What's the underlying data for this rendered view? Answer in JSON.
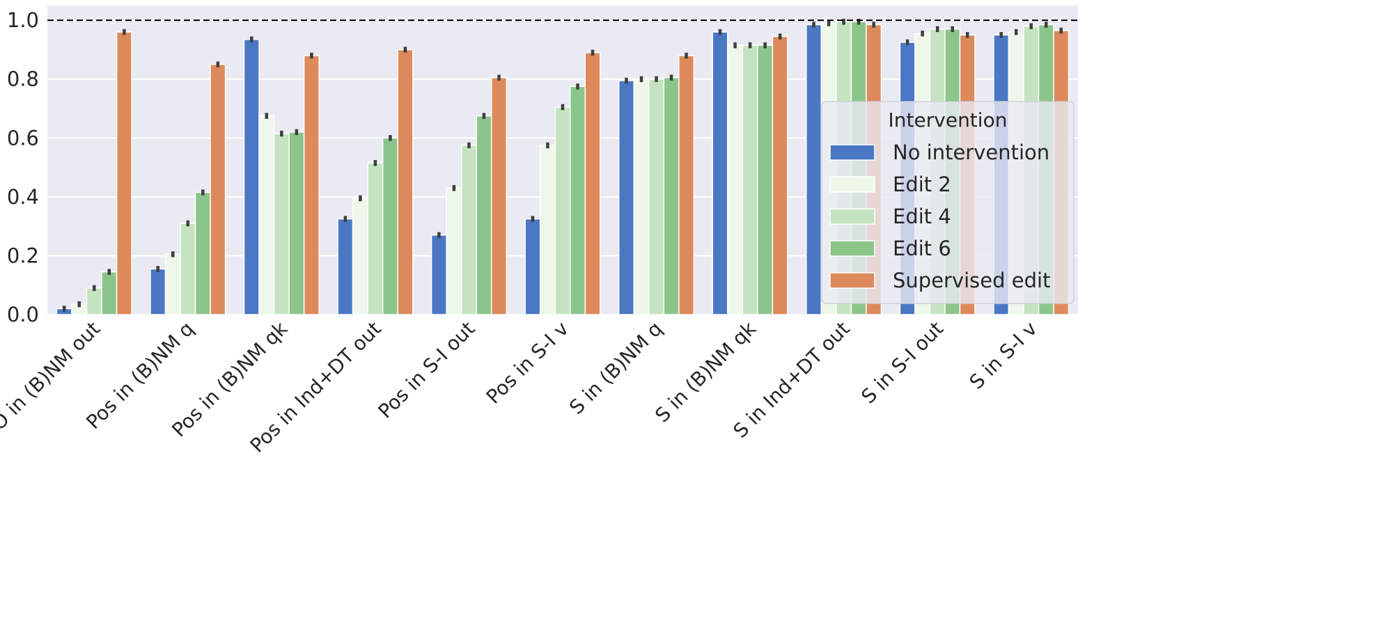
{
  "chart_data": {
    "type": "bar",
    "title": "",
    "xlabel": "",
    "ylabel": "",
    "ylim": [
      0,
      1.05
    ],
    "yticks": [
      "0.0",
      "0.2",
      "0.4",
      "0.6",
      "0.8",
      "1.0"
    ],
    "reference_line": 1.0,
    "grid": true,
    "legend_title": "Intervention",
    "legend_placement": "right",
    "ci_halfwidth": 0.01,
    "categories": [
      "IO in (B)NM out",
      "Pos in (B)NM q",
      "Pos in (B)NM qk",
      "Pos in Ind+DT out",
      "Pos in S-I out",
      "Pos in S-I v",
      "S in (B)NM q",
      "S in (B)NM qk",
      "S in Ind+DT out",
      "S in S-I out",
      "S in S-I v"
    ],
    "series": [
      {
        "name": "No intervention",
        "color": "#4a78c4",
        "values": [
          0.02,
          0.155,
          0.935,
          0.325,
          0.27,
          0.325,
          0.795,
          0.96,
          0.985,
          0.925,
          0.95
        ]
      },
      {
        "name": "Edit 2",
        "color": "#eef7ea",
        "values": [
          0.035,
          0.205,
          0.675,
          0.395,
          0.43,
          0.575,
          0.8,
          0.915,
          0.99,
          0.955,
          0.96
        ]
      },
      {
        "name": "Edit 4",
        "color": "#c5e3c0",
        "values": [
          0.09,
          0.31,
          0.615,
          0.515,
          0.575,
          0.705,
          0.8,
          0.915,
          0.995,
          0.97,
          0.98
        ]
      },
      {
        "name": "Edit 6",
        "color": "#8bc58a",
        "values": [
          0.145,
          0.415,
          0.62,
          0.6,
          0.675,
          0.775,
          0.805,
          0.915,
          0.995,
          0.97,
          0.985
        ]
      },
      {
        "name": "Supervised edit",
        "color": "#dd8a5a",
        "values": [
          0.96,
          0.85,
          0.88,
          0.9,
          0.805,
          0.89,
          0.88,
          0.945,
          0.985,
          0.95,
          0.965
        ]
      }
    ]
  }
}
